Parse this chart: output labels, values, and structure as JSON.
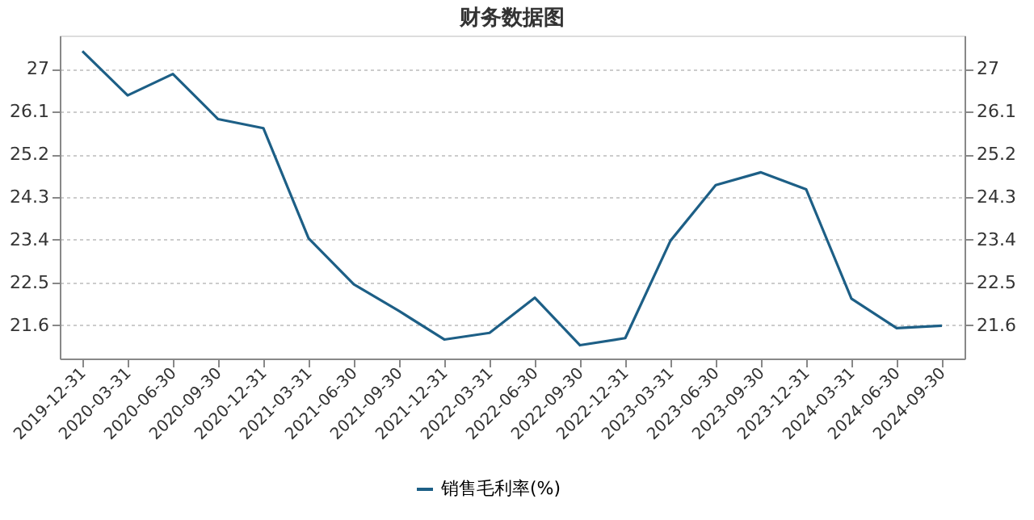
{
  "chart_data": {
    "type": "line",
    "title": "财务数据图",
    "categories": [
      "2019-12-31",
      "2020-03-31",
      "2020-06-30",
      "2020-09-30",
      "2020-12-31",
      "2021-03-31",
      "2021-06-30",
      "2021-09-30",
      "2021-12-31",
      "2022-03-31",
      "2022-06-30",
      "2022-09-30",
      "2022-12-31",
      "2023-03-31",
      "2023-06-30",
      "2023-09-30",
      "2023-12-31",
      "2024-03-31",
      "2024-06-30",
      "2024-09-30"
    ],
    "series": [
      {
        "name": "销售毛利率(%)",
        "color": "#1d5f86",
        "values": [
          27.37,
          26.44,
          26.89,
          25.94,
          25.75,
          23.43,
          22.46,
          21.9,
          21.3,
          21.44,
          22.18,
          21.18,
          21.33,
          23.38,
          24.55,
          24.82,
          24.46,
          22.16,
          21.54,
          21.59
        ]
      }
    ],
    "ylim": [
      20.9,
      27.7
    ],
    "yticks": [
      21.6,
      22.5,
      23.4,
      24.3,
      25.2,
      26.1,
      27
    ],
    "y2lim": [
      20.9,
      27.7
    ],
    "y2ticks": [
      21.6,
      22.5,
      23.4,
      24.3,
      25.2,
      26.1,
      27
    ],
    "grid": "y",
    "legend": "bottom",
    "marker": "none",
    "line_style": "solid"
  }
}
